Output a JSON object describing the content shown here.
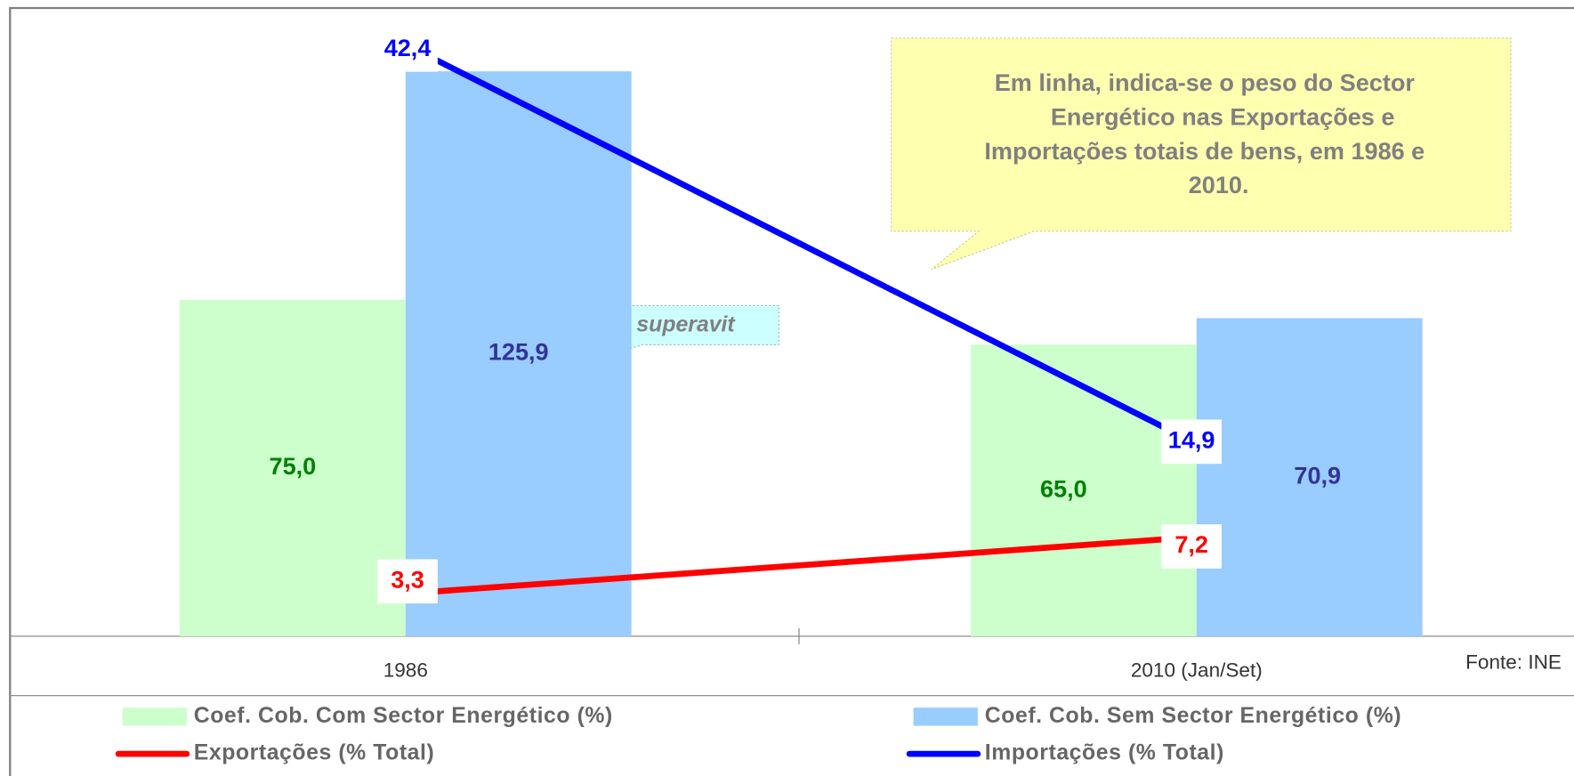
{
  "chart_data": {
    "type": "bar-line",
    "categories": [
      "1986",
      "2010 (Jan/Set)"
    ],
    "series": [
      {
        "name": "Coef. Cob. Com Sector Energético (%)",
        "type": "bar",
        "color": "#ccffcc",
        "label_color": "#008000",
        "values": [
          75.0,
          65.0
        ],
        "value_labels": [
          "75,0",
          "65,0"
        ]
      },
      {
        "name": "Coef. Cob. Sem Sector Energético (%)",
        "type": "bar",
        "color": "#99ccff",
        "label_color": "#333399",
        "values": [
          125.9,
          70.9
        ],
        "value_labels": [
          "125,9",
          "70,9"
        ]
      },
      {
        "name": "Exportações (% Total)",
        "type": "line",
        "axis": "y2",
        "color": "#ff0000",
        "label_color": "#ff0000",
        "values": [
          3.3,
          7.2
        ],
        "value_labels": [
          "3,3",
          "7,2"
        ]
      },
      {
        "name": "Importações (% Total)",
        "type": "line",
        "axis": "y2",
        "color": "#0000ff",
        "label_color": "#0000ff",
        "values": [
          42.4,
          14.9
        ],
        "value_labels": [
          "42,4",
          "14,9"
        ]
      }
    ],
    "ylim": [
      0,
      140
    ],
    "y2lim": [
      0,
      46.2
    ],
    "annotations": {
      "callout": [
        "Em linha, indica-se o peso do Sector",
        "Energético nas Exportações e",
        "Importações totais de bens, em 1986 e",
        "2010."
      ],
      "superavit": "superavit",
      "source": "Fonte: INE"
    }
  }
}
